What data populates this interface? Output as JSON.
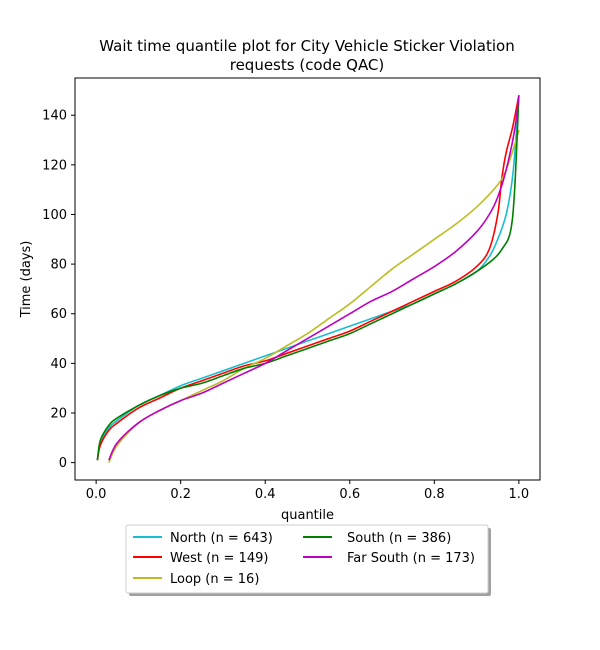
{
  "chart_data": {
    "type": "line",
    "title": "Wait time quantile plot for City Vehicle Sticker Violation requests (code QAC)",
    "title_lines": [
      "Wait time quantile plot for City Vehicle Sticker Violation",
      "requests (code QAC)"
    ],
    "xlabel": "quantile",
    "ylabel": "Time (days)",
    "xlim": [
      -0.05,
      1.05
    ],
    "ylim": [
      -7,
      155
    ],
    "x_ticks": [
      0.0,
      0.2,
      0.4,
      0.6,
      0.8,
      1.0
    ],
    "x_tick_labels": [
      "0.0",
      "0.2",
      "0.4",
      "0.6",
      "0.8",
      "1.0"
    ],
    "y_ticks": [
      0,
      20,
      40,
      60,
      80,
      100,
      120,
      140
    ],
    "y_tick_labels": [
      "0",
      "20",
      "40",
      "60",
      "80",
      "100",
      "120",
      "140"
    ],
    "grid": false,
    "legend_position": "below",
    "series": [
      {
        "name": "North (n = 643)",
        "color": "#17becf",
        "points": [
          [
            0.003,
            1
          ],
          [
            0.01,
            8
          ],
          [
            0.03,
            14
          ],
          [
            0.05,
            17
          ],
          [
            0.1,
            23
          ],
          [
            0.15,
            27
          ],
          [
            0.2,
            31
          ],
          [
            0.25,
            34
          ],
          [
            0.3,
            37
          ],
          [
            0.35,
            40
          ],
          [
            0.4,
            43
          ],
          [
            0.45,
            46
          ],
          [
            0.5,
            49
          ],
          [
            0.55,
            52
          ],
          [
            0.6,
            55
          ],
          [
            0.65,
            58
          ],
          [
            0.7,
            61
          ],
          [
            0.75,
            64
          ],
          [
            0.8,
            68
          ],
          [
            0.85,
            72
          ],
          [
            0.9,
            77
          ],
          [
            0.93,
            83
          ],
          [
            0.95,
            90
          ],
          [
            0.97,
            100
          ],
          [
            0.985,
            115
          ],
          [
            0.995,
            135
          ],
          [
            1.0,
            148
          ]
        ]
      },
      {
        "name": "West (n = 149)",
        "color": "#ff0000",
        "points": [
          [
            0.003,
            1
          ],
          [
            0.01,
            7
          ],
          [
            0.03,
            13
          ],
          [
            0.05,
            16
          ],
          [
            0.1,
            22
          ],
          [
            0.15,
            26
          ],
          [
            0.2,
            30
          ],
          [
            0.25,
            33
          ],
          [
            0.3,
            36
          ],
          [
            0.35,
            39
          ],
          [
            0.4,
            41
          ],
          [
            0.45,
            44
          ],
          [
            0.5,
            47
          ],
          [
            0.55,
            50
          ],
          [
            0.6,
            53
          ],
          [
            0.65,
            57
          ],
          [
            0.7,
            61
          ],
          [
            0.75,
            65
          ],
          [
            0.8,
            69
          ],
          [
            0.85,
            73
          ],
          [
            0.9,
            79
          ],
          [
            0.93,
            86
          ],
          [
            0.95,
            100
          ],
          [
            0.96,
            115
          ],
          [
            0.97,
            125
          ],
          [
            0.985,
            135
          ],
          [
            1.0,
            148
          ]
        ]
      },
      {
        "name": "Loop (n = 16)",
        "color": "#bcbd22",
        "points": [
          [
            0.03,
            0
          ],
          [
            0.05,
            7
          ],
          [
            0.1,
            16
          ],
          [
            0.15,
            21
          ],
          [
            0.2,
            25
          ],
          [
            0.25,
            29
          ],
          [
            0.3,
            33
          ],
          [
            0.35,
            38
          ],
          [
            0.4,
            42
          ],
          [
            0.45,
            47
          ],
          [
            0.5,
            52
          ],
          [
            0.55,
            58
          ],
          [
            0.6,
            64
          ],
          [
            0.65,
            71
          ],
          [
            0.7,
            78
          ],
          [
            0.75,
            84
          ],
          [
            0.8,
            90
          ],
          [
            0.85,
            96
          ],
          [
            0.9,
            103
          ],
          [
            0.95,
            112
          ],
          [
            0.97,
            118
          ],
          [
            0.99,
            128
          ],
          [
            1.0,
            134
          ]
        ]
      },
      {
        "name": "South (n = 386)",
        "color": "#008000",
        "points": [
          [
            0.003,
            1
          ],
          [
            0.01,
            9
          ],
          [
            0.03,
            15
          ],
          [
            0.05,
            18
          ],
          [
            0.1,
            23
          ],
          [
            0.15,
            27
          ],
          [
            0.2,
            30
          ],
          [
            0.25,
            32
          ],
          [
            0.3,
            35
          ],
          [
            0.35,
            38
          ],
          [
            0.4,
            40
          ],
          [
            0.45,
            43
          ],
          [
            0.5,
            46
          ],
          [
            0.55,
            49
          ],
          [
            0.6,
            52
          ],
          [
            0.65,
            56
          ],
          [
            0.7,
            60
          ],
          [
            0.75,
            64
          ],
          [
            0.8,
            68
          ],
          [
            0.85,
            72
          ],
          [
            0.9,
            77
          ],
          [
            0.94,
            82
          ],
          [
            0.96,
            86
          ],
          [
            0.98,
            93
          ],
          [
            0.99,
            110
          ],
          [
            1.0,
            148
          ]
        ]
      },
      {
        "name": "Far South (n = 173)",
        "color": "#bf00bf",
        "points": [
          [
            0.03,
            1
          ],
          [
            0.05,
            8
          ],
          [
            0.1,
            16
          ],
          [
            0.15,
            21
          ],
          [
            0.2,
            25
          ],
          [
            0.25,
            28
          ],
          [
            0.3,
            32
          ],
          [
            0.35,
            36
          ],
          [
            0.4,
            40
          ],
          [
            0.45,
            45
          ],
          [
            0.5,
            50
          ],
          [
            0.55,
            55
          ],
          [
            0.6,
            60
          ],
          [
            0.65,
            65
          ],
          [
            0.7,
            69
          ],
          [
            0.75,
            74
          ],
          [
            0.8,
            79
          ],
          [
            0.85,
            85
          ],
          [
            0.9,
            93
          ],
          [
            0.93,
            100
          ],
          [
            0.95,
            107
          ],
          [
            0.97,
            118
          ],
          [
            0.99,
            134
          ],
          [
            1.0,
            148
          ]
        ]
      }
    ]
  }
}
